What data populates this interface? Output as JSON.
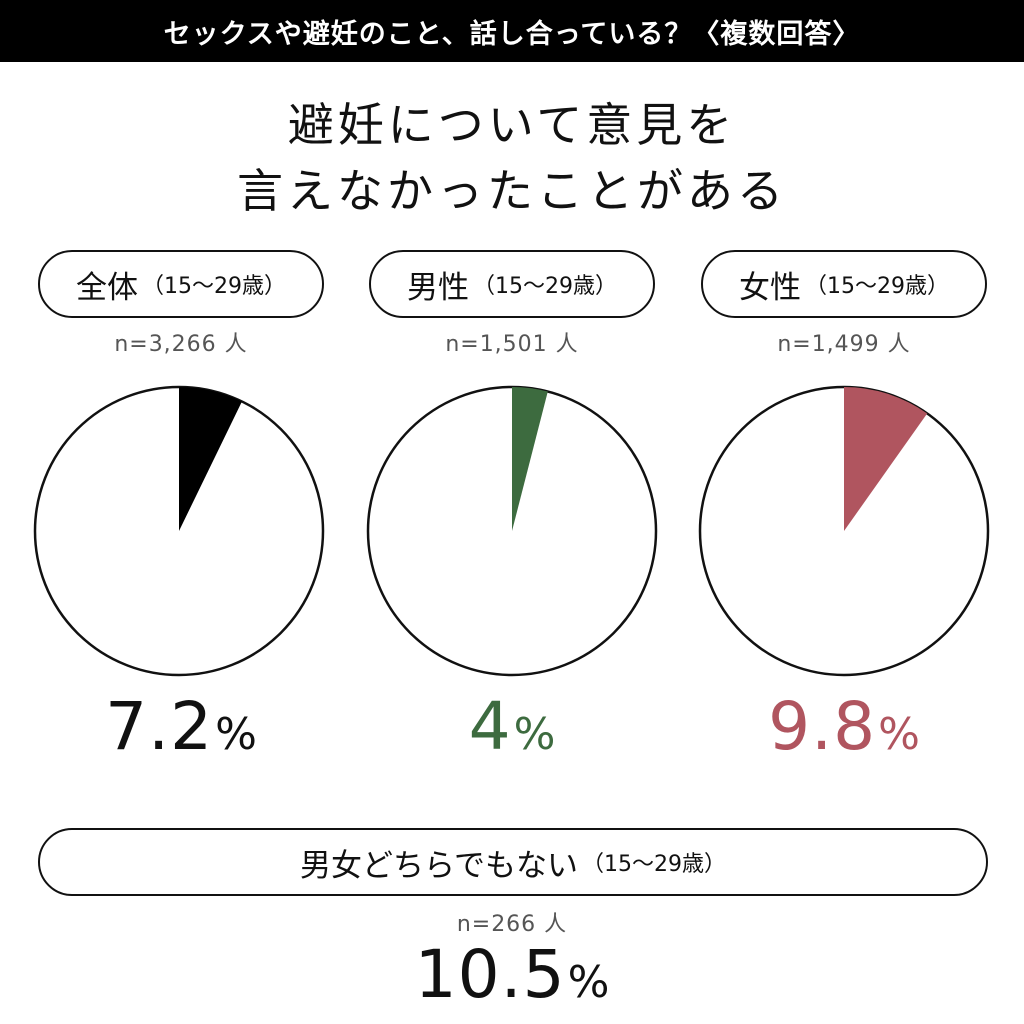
{
  "header": {
    "title": "セックスや避妊のこと、話し合っている？〈複数回答〉"
  },
  "title": {
    "line1": "避妊について意見を",
    "line2": "言えなかったことがある"
  },
  "chart_data": {
    "type": "pie",
    "title": "避妊について意見を言えなかったことがある",
    "series": [
      {
        "label": "全体",
        "age": "（15〜29歳）",
        "n": "n=3,266 人",
        "value": 7.2,
        "display": "7.2",
        "unit": "%",
        "color": "#000000"
      },
      {
        "label": "男性",
        "age": "（15〜29歳）",
        "n": "n=1,501 人",
        "value": 4,
        "display": "4",
        "unit": "%",
        "color": "#3d6b3f"
      },
      {
        "label": "女性",
        "age": "（15〜29歳）",
        "n": "n=1,499 人",
        "value": 9.8,
        "display": "9.8",
        "unit": "%",
        "color": "#b0555f"
      }
    ],
    "extra": {
      "label": "男女どちらでもない",
      "age": "（15〜29歳）",
      "n": "n=266 人",
      "value": 10.5,
      "display": "10.5",
      "unit": "%",
      "color": "#111111"
    }
  }
}
